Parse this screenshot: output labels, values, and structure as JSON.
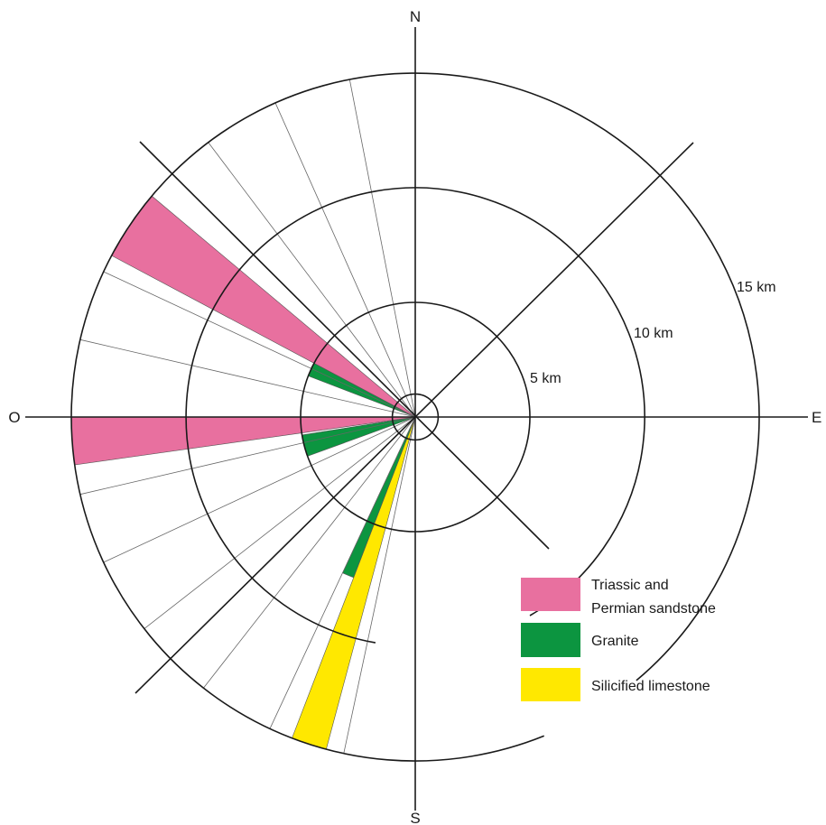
{
  "cardinals": {
    "north": "N",
    "east": "E",
    "south": "S",
    "west": "O"
  },
  "rings": [
    {
      "radius_km": 1,
      "label": ""
    },
    {
      "radius_km": 5,
      "label": "5 km"
    },
    {
      "radius_km": 10,
      "label": "10 km"
    },
    {
      "radius_km": 15,
      "label": "15 km"
    }
  ],
  "sectors": [
    {
      "from_deg": 195,
      "to_deg": 201,
      "reach_km": 15,
      "rock": "silicified_limestone"
    },
    {
      "from_deg": 201,
      "to_deg": 205,
      "reach_km": 7.5,
      "rock": "granite"
    },
    {
      "from_deg": 250,
      "to_deg": 261,
      "reach_km": 5,
      "rock": "granite"
    },
    {
      "from_deg": 262,
      "to_deg": 270,
      "reach_km": 15,
      "rock": "triassic_permian_sandstone"
    },
    {
      "from_deg": 291,
      "to_deg": 298,
      "reach_km": 5,
      "rock": "granite"
    },
    {
      "from_deg": 298,
      "to_deg": 310,
      "reach_km": 15,
      "rock": "triassic_permian_sandstone"
    }
  ],
  "divider_bearings_deg": [
    192,
    205,
    218,
    232,
    245,
    257,
    283,
    295,
    323,
    336,
    349
  ],
  "colors": {
    "triassic_permian_sandstone": "#e8709f",
    "granite": "#0c9540",
    "silicified_limestone": "#ffe800"
  },
  "legend": [
    {
      "key": "triassic_permian_sandstone",
      "line1": "Triassic and",
      "line2": "Permian sandstone"
    },
    {
      "key": "granite",
      "line1": "Granite",
      "line2": ""
    },
    {
      "key": "silicified_limestone",
      "line1": "Silicified limestone",
      "line2": ""
    }
  ]
}
